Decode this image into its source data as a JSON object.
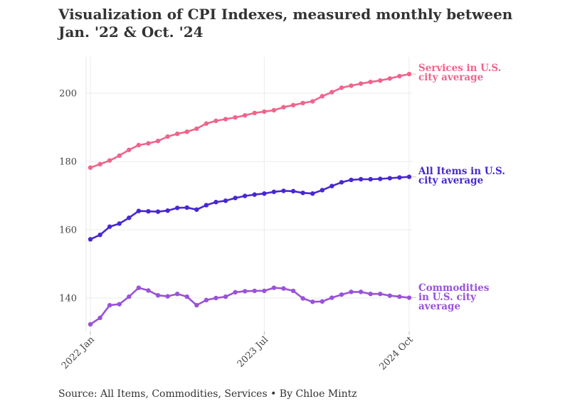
{
  "title": "Visualization of CPI Indexes, measured monthly between Jan. '22 & Oct. '24",
  "source": "Source: All Items, Commodities, Services • By Chloe Mintz",
  "chart_data": {
    "type": "line",
    "x": [
      "2022-01",
      "2022-02",
      "2022-03",
      "2022-04",
      "2022-05",
      "2022-06",
      "2022-07",
      "2022-08",
      "2022-09",
      "2022-10",
      "2022-11",
      "2022-12",
      "2023-01",
      "2023-02",
      "2023-03",
      "2023-04",
      "2023-05",
      "2023-06",
      "2023-07",
      "2023-08",
      "2023-09",
      "2023-10",
      "2023-11",
      "2023-12",
      "2024-01",
      "2024-02",
      "2024-03",
      "2024-04",
      "2024-05",
      "2024-06",
      "2024-07",
      "2024-08",
      "2024-09",
      "2024-10"
    ],
    "x_ticks": [
      {
        "label": "2022 Jan",
        "index": 0
      },
      {
        "label": "2023 Jul",
        "index": 18
      },
      {
        "label": "2024 Oct",
        "index": 33
      }
    ],
    "y_ticks": [
      140,
      160,
      180,
      200
    ],
    "ylim": [
      130,
      212
    ],
    "grid": true,
    "xlabel": "",
    "ylabel": "",
    "series": [
      {
        "name": "Services in U.S. city average",
        "label_lines": [
          "Services in U.S.",
          "city average"
        ],
        "color": "#f0648c",
        "values": [
          178.2,
          179.2,
          180.3,
          181.7,
          183.4,
          184.8,
          185.3,
          186.0,
          187.3,
          188.1,
          188.7,
          189.6,
          191.1,
          191.9,
          192.4,
          192.9,
          193.5,
          194.2,
          194.6,
          195.0,
          195.9,
          196.5,
          197.1,
          197.6,
          199.1,
          200.3,
          201.6,
          202.2,
          202.8,
          203.3,
          203.7,
          204.3,
          205.0,
          205.6
        ]
      },
      {
        "name": "All Items in U.S. city average",
        "label_lines": [
          "All Items in U.S.",
          "city average"
        ],
        "color": "#4828d0",
        "values": [
          157.2,
          158.5,
          160.9,
          161.8,
          163.5,
          165.5,
          165.4,
          165.3,
          165.6,
          166.4,
          166.5,
          165.9,
          167.2,
          168.1,
          168.5,
          169.3,
          169.9,
          170.3,
          170.6,
          171.1,
          171.4,
          171.3,
          170.8,
          170.6,
          171.6,
          172.8,
          173.9,
          174.6,
          174.8,
          174.8,
          174.9,
          175.1,
          175.3,
          175.5
        ]
      },
      {
        "name": "Commodities in U.S. city average",
        "label_lines": [
          "Commodities",
          "in U.S. city",
          "average"
        ],
        "color": "#9a52d8",
        "values": [
          132.3,
          134.2,
          137.9,
          138.2,
          140.4,
          143.0,
          142.2,
          140.8,
          140.5,
          141.2,
          140.4,
          137.9,
          139.4,
          140.0,
          140.4,
          141.7,
          142.0,
          142.1,
          142.1,
          143.0,
          142.8,
          142.1,
          139.9,
          138.9,
          139.0,
          140.1,
          141.0,
          141.8,
          141.8,
          141.2,
          141.2,
          140.7,
          140.4,
          140.1
        ]
      }
    ]
  }
}
